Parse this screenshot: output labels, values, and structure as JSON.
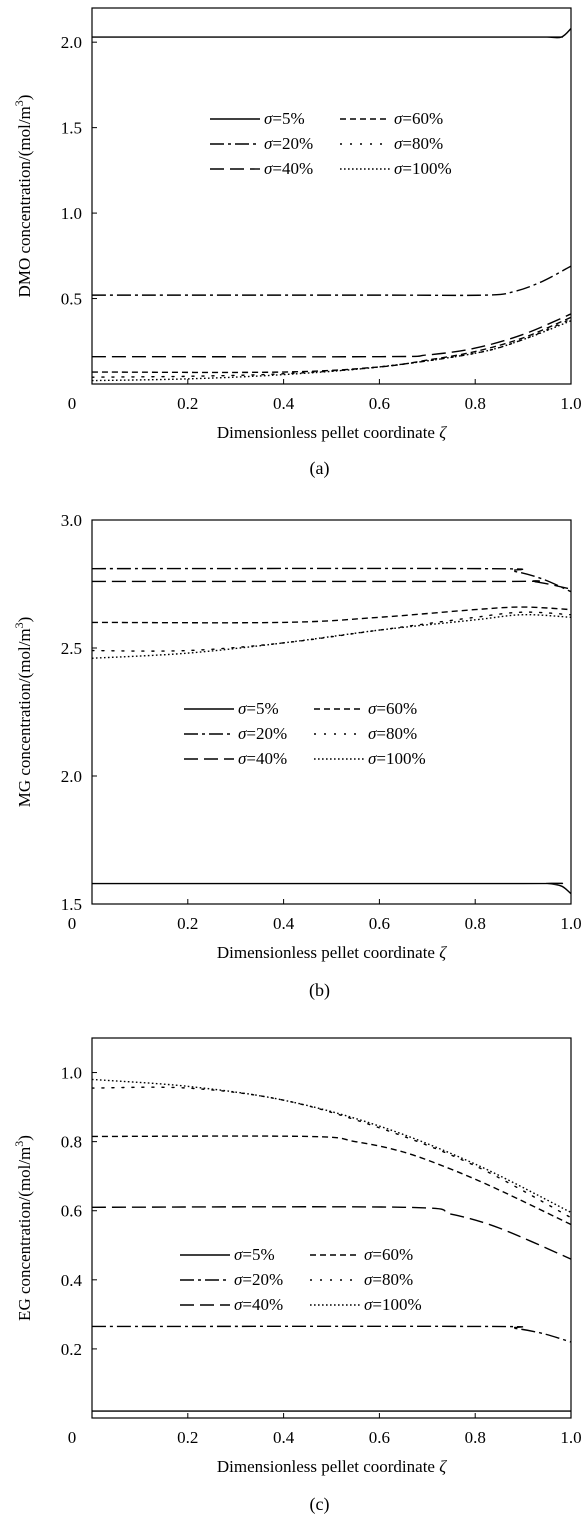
{
  "chart_data": [
    {
      "type": "line",
      "caption": "(a)",
      "xlabel": "Dimensionless pellet coordinate ζ",
      "ylabel": "DMO concentration/(mol/m³)",
      "xlim": [
        0,
        1.0
      ],
      "ylim": [
        0,
        2.2
      ],
      "xticks": [
        "0",
        "0.2",
        "0.4",
        "0.6",
        "0.8",
        "1.0"
      ],
      "yticks": [
        "0.5",
        "1.0",
        "1.5",
        "2.0"
      ],
      "legend_placement": "upper-middle",
      "series": [
        {
          "name": "σ=5%",
          "x": [
            0,
            0.9,
            0.95,
            0.98,
            1.0
          ],
          "y": [
            2.03,
            2.03,
            2.03,
            2.03,
            2.08
          ]
        },
        {
          "name": "σ=20%",
          "x": [
            0,
            0.6,
            0.82,
            0.88,
            0.94,
            1.0
          ],
          "y": [
            0.52,
            0.52,
            0.52,
            0.54,
            0.6,
            0.69
          ]
        },
        {
          "name": "σ=40%",
          "x": [
            0,
            0.6,
            0.7,
            0.8,
            0.9,
            1.0
          ],
          "y": [
            0.16,
            0.16,
            0.17,
            0.21,
            0.29,
            0.41
          ]
        },
        {
          "name": "σ=60%",
          "x": [
            0,
            0.4,
            0.6,
            0.7,
            0.8,
            0.9,
            1.0
          ],
          "y": [
            0.07,
            0.07,
            0.1,
            0.14,
            0.19,
            0.27,
            0.39
          ]
        },
        {
          "name": "σ=80%",
          "x": [
            0,
            0.2,
            0.4,
            0.6,
            0.8,
            0.9,
            1.0
          ],
          "y": [
            0.04,
            0.045,
            0.06,
            0.1,
            0.18,
            0.26,
            0.38
          ]
        },
        {
          "name": "σ=100%",
          "x": [
            0,
            0.2,
            0.4,
            0.6,
            0.8,
            0.9,
            1.0
          ],
          "y": [
            0.02,
            0.03,
            0.055,
            0.1,
            0.18,
            0.26,
            0.37
          ]
        }
      ]
    },
    {
      "type": "line",
      "caption": "(b)",
      "xlabel": "Dimensionless pellet coordinate ζ",
      "ylabel": "MG concentration/(mol/m³)",
      "xlim": [
        0,
        1.0
      ],
      "ylim": [
        1.5,
        3.0
      ],
      "xticks": [
        "0",
        "0.2",
        "0.4",
        "0.6",
        "0.8",
        "1.0"
      ],
      "yticks": [
        "1.5",
        "2.0",
        "2.5",
        "3.0"
      ],
      "legend_placement": "middle-center",
      "series": [
        {
          "name": "σ=5%",
          "x": [
            0,
            0.9,
            0.95,
            0.98,
            1.0
          ],
          "y": [
            1.58,
            1.58,
            1.58,
            1.57,
            1.54
          ]
        },
        {
          "name": "σ=20%",
          "x": [
            0,
            0.82,
            0.88,
            0.94,
            1.0
          ],
          "y": [
            2.81,
            2.81,
            2.8,
            2.77,
            2.72
          ]
        },
        {
          "name": "σ=40%",
          "x": [
            0,
            0.85,
            0.92,
            1.0
          ],
          "y": [
            2.76,
            2.76,
            2.76,
            2.73
          ]
        },
        {
          "name": "σ=60%",
          "x": [
            0,
            0.4,
            0.6,
            0.8,
            0.9,
            1.0
          ],
          "y": [
            2.6,
            2.6,
            2.62,
            2.65,
            2.66,
            2.65
          ]
        },
        {
          "name": "σ=80%",
          "x": [
            0,
            0.2,
            0.4,
            0.6,
            0.8,
            0.9,
            1.0
          ],
          "y": [
            2.49,
            2.49,
            2.52,
            2.57,
            2.62,
            2.64,
            2.63
          ]
        },
        {
          "name": "σ=100%",
          "x": [
            0,
            0.2,
            0.4,
            0.6,
            0.8,
            0.9,
            1.0
          ],
          "y": [
            2.46,
            2.48,
            2.52,
            2.57,
            2.61,
            2.63,
            2.62
          ]
        }
      ]
    },
    {
      "type": "line",
      "caption": "(c)",
      "xlabel": "Dimensionless pellet coordinate ζ",
      "ylabel": "EG concentration/(mol/m³)",
      "xlim": [
        0,
        1.0
      ],
      "ylim": [
        0,
        1.1
      ],
      "xticks": [
        "0",
        "0.2",
        "0.4",
        "0.6",
        "0.8",
        "1.0"
      ],
      "yticks": [
        "0.2",
        "0.4",
        "0.6",
        "0.8",
        "1.0"
      ],
      "legend_placement": "lower-middle",
      "series": [
        {
          "name": "σ=5%",
          "x": [
            0,
            1.0
          ],
          "y": [
            0.02,
            0.02
          ]
        },
        {
          "name": "σ=20%",
          "x": [
            0,
            0.82,
            0.88,
            0.94,
            1.0
          ],
          "y": [
            0.265,
            0.265,
            0.26,
            0.245,
            0.22
          ]
        },
        {
          "name": "σ=40%",
          "x": [
            0,
            0.65,
            0.75,
            0.85,
            1.0
          ],
          "y": [
            0.61,
            0.61,
            0.59,
            0.55,
            0.46
          ]
        },
        {
          "name": "σ=60%",
          "x": [
            0,
            0.45,
            0.55,
            0.65,
            0.75,
            0.85,
            1.0
          ],
          "y": [
            0.815,
            0.815,
            0.8,
            0.77,
            0.72,
            0.66,
            0.56
          ]
        },
        {
          "name": "σ=80%",
          "x": [
            0,
            0.2,
            0.4,
            0.6,
            0.8,
            1.0
          ],
          "y": [
            0.955,
            0.955,
            0.92,
            0.84,
            0.73,
            0.58
          ]
        },
        {
          "name": "σ=100%",
          "x": [
            0,
            0.2,
            0.4,
            0.6,
            0.8,
            1.0
          ],
          "y": [
            0.98,
            0.96,
            0.92,
            0.845,
            0.735,
            0.595
          ]
        }
      ]
    }
  ]
}
